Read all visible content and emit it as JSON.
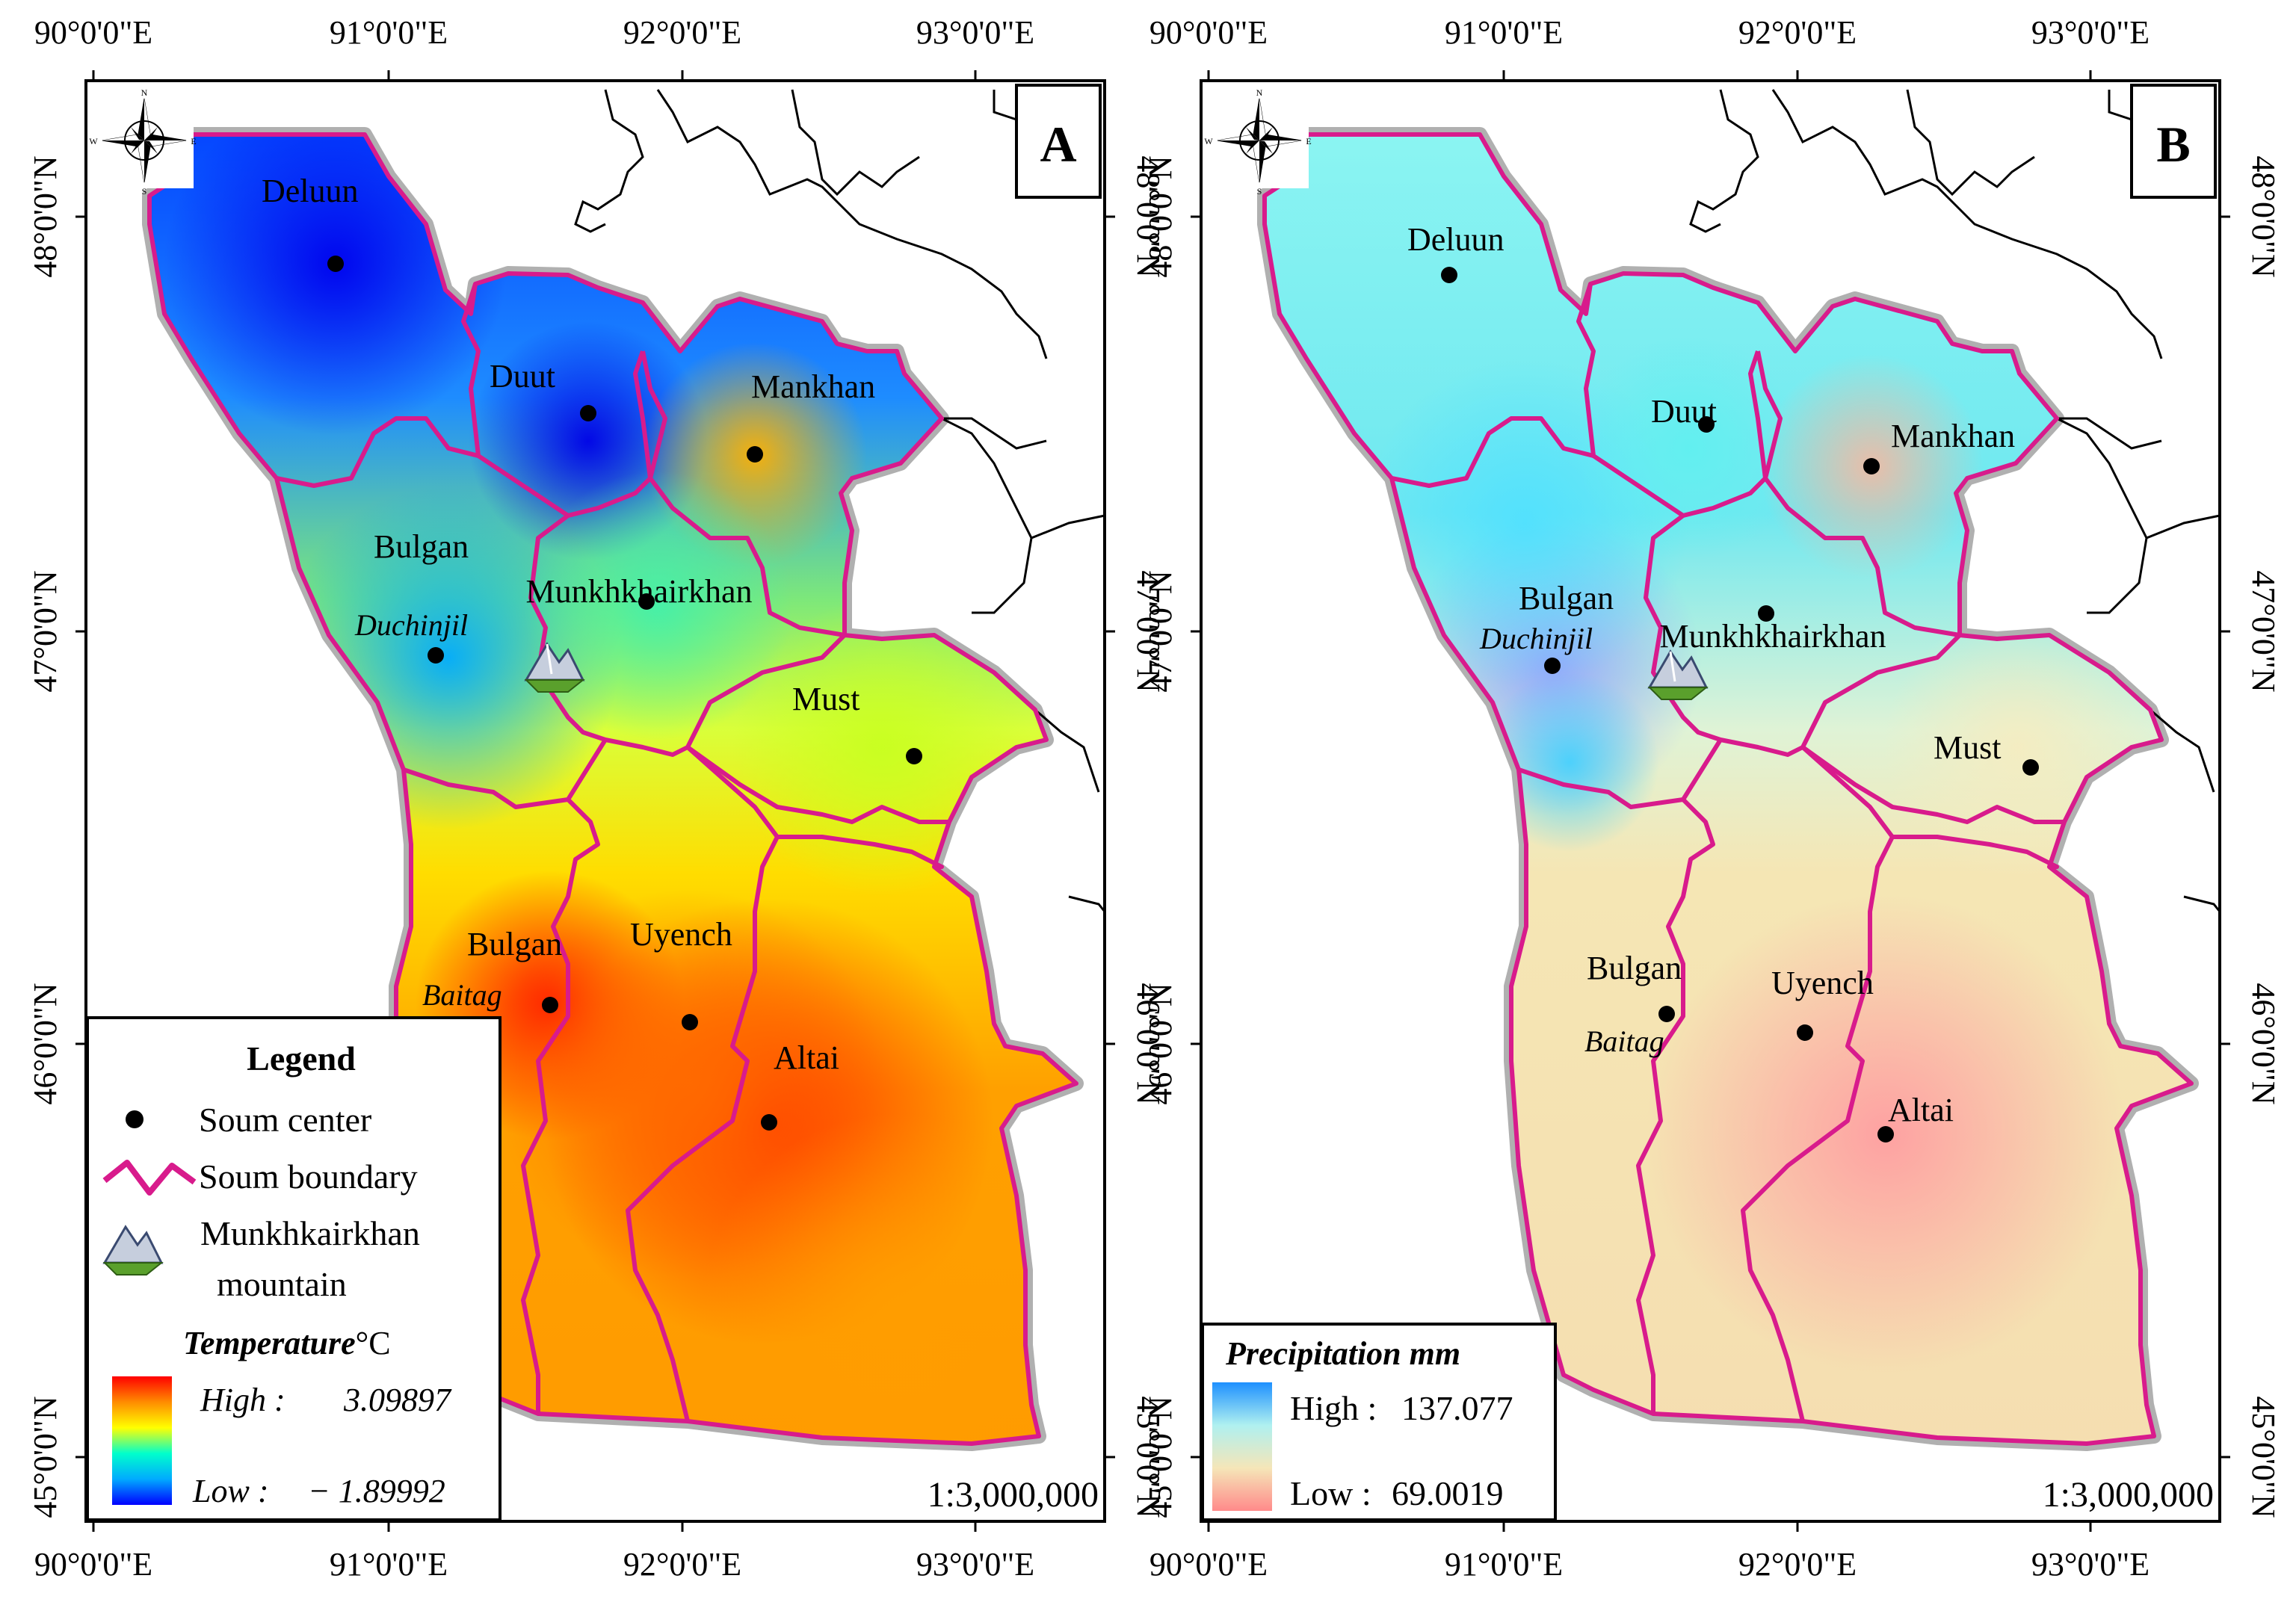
{
  "panels": [
    {
      "letter": "A",
      "variable": "Temperature",
      "unit": "°C",
      "legend": {
        "title": "Legend",
        "items": [
          "Soum center",
          "Soum boundary",
          "Munkhkairkhan",
          "mountain"
        ],
        "ramp_title": "Temperature",
        "ramp_unit": "°C",
        "high_label": "High :",
        "high_value": "3.09897",
        "low_label": "Low :",
        "low_value": "− 1.89992",
        "colors": [
          "#ff0000",
          "#ff8c00",
          "#ffff00",
          "#00ffcc",
          "#00aaff",
          "#0000ff"
        ]
      },
      "scale": "1:3,000,000"
    },
    {
      "letter": "B",
      "variable": "Precipitation",
      "unit": "mm",
      "legend": {
        "ramp_title": "Precipitation mm",
        "high_label": "High :",
        "high_value": "137.077",
        "low_label": "Low :",
        "low_value": "69.0019",
        "colors": [
          "#1e90ff",
          "#aff0f0",
          "#f5e6b8",
          "#ff8a8a"
        ]
      },
      "scale": "1:3,000,000"
    }
  ],
  "longitude_ticks": [
    "90°0'0\"E",
    "91°0'0\"E",
    "92°0'0\"E",
    "93°0'0\"E"
  ],
  "latitude_ticks": [
    "48°0'0\"N",
    "47°0'0\"N",
    "46°0'0\"N",
    "45°0'0\"N"
  ],
  "soums": [
    {
      "name": "Deluun",
      "locality": ""
    },
    {
      "name": "Duut",
      "locality": ""
    },
    {
      "name": "Mankhan",
      "locality": ""
    },
    {
      "name": "Bulgan",
      "locality": "Duchinjil"
    },
    {
      "name": "Munkhkhairkhan",
      "locality": ""
    },
    {
      "name": "Must",
      "locality": ""
    },
    {
      "name": "Bulgan",
      "locality": "Baitag"
    },
    {
      "name": "Uyench",
      "locality": ""
    },
    {
      "name": "Altai",
      "locality": ""
    }
  ],
  "compass": {
    "n": "N",
    "s": "S",
    "e": "E",
    "w": "W"
  },
  "style": {
    "boundary_color": "#d81b8c",
    "outer_shadow": "#b0b0b0"
  }
}
